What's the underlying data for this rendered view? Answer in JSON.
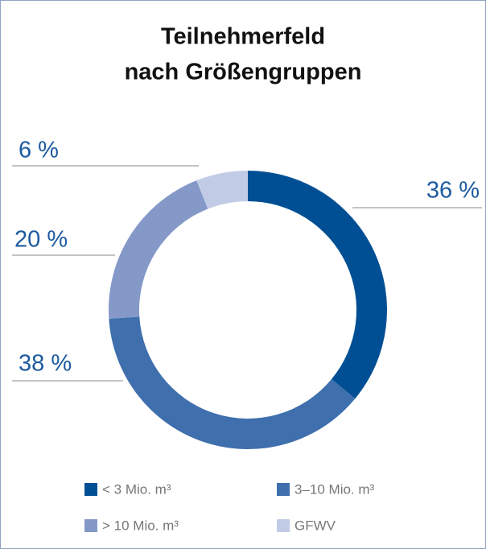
{
  "chart_data": {
    "type": "donut",
    "title": [
      "Teilnehmerfeld",
      "nach Größengruppen"
    ],
    "categories": [
      "< 3 Mio. m³",
      "3–10 Mio. m³",
      "> 10 Mio. m³",
      "GFWV"
    ],
    "values": [
      36,
      38,
      20,
      6
    ],
    "value_labels": [
      "36 %",
      "38 %",
      "20 %",
      "6 %"
    ],
    "colors": [
      "#004f94",
      "#3f6fad",
      "#8499c8",
      "#c2cbe6"
    ]
  }
}
